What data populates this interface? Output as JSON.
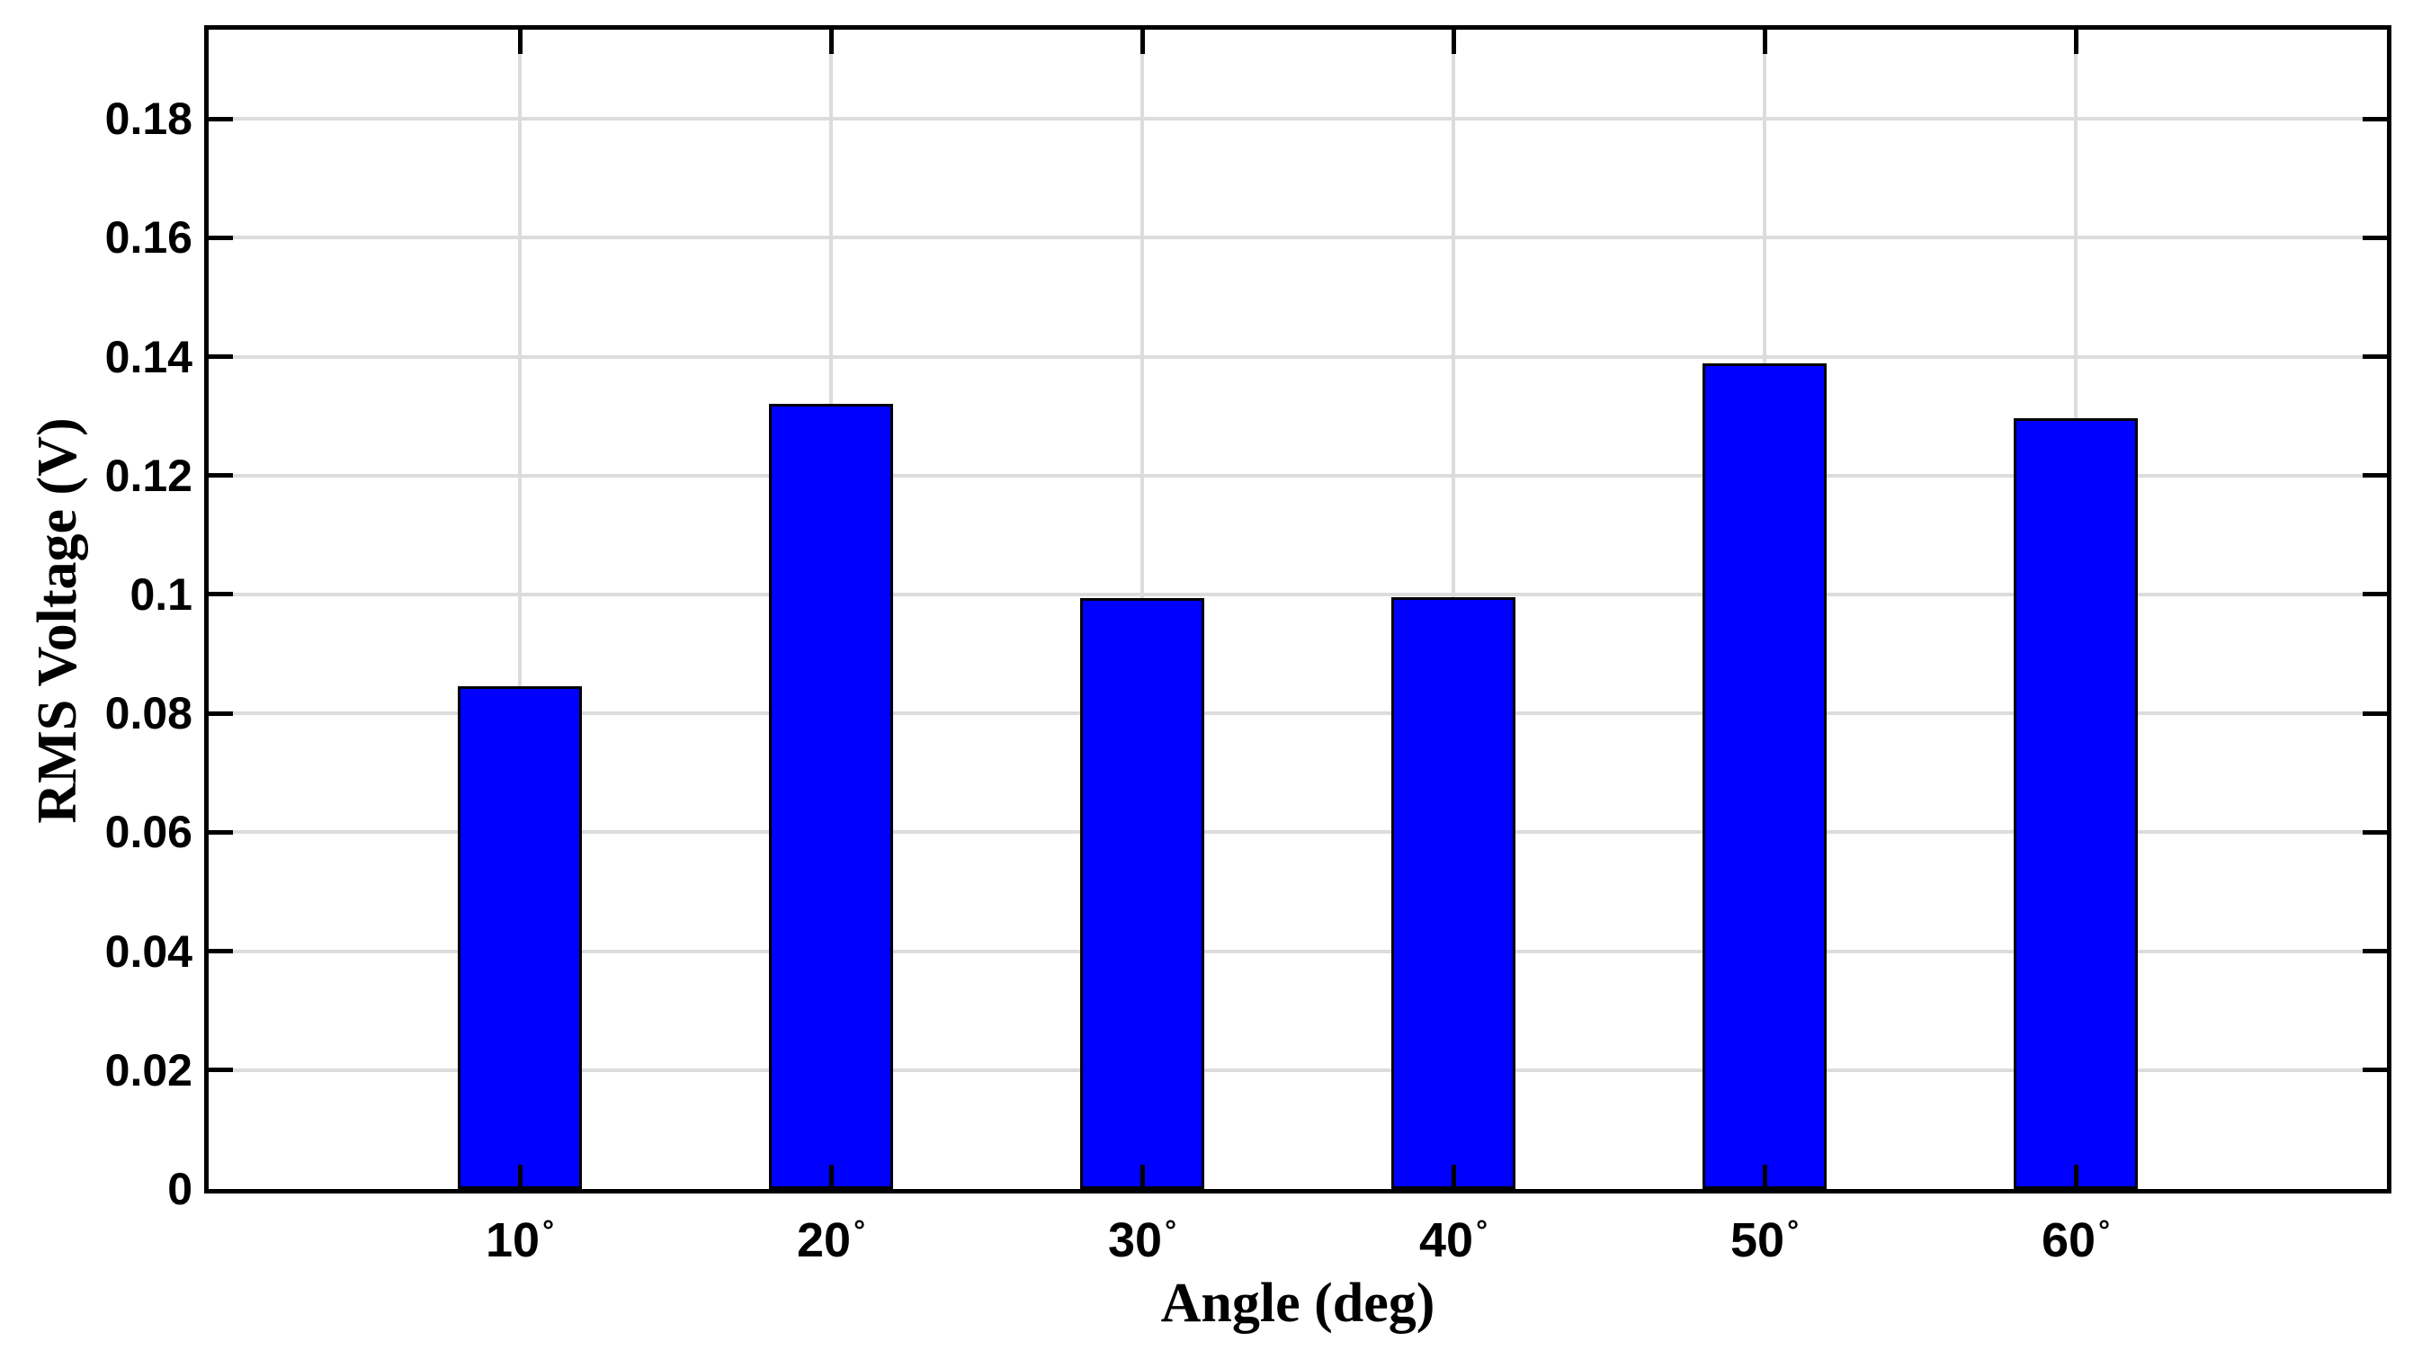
{
  "chart_data": {
    "type": "bar",
    "title": "",
    "xlabel": "Angle (deg)",
    "ylabel": "RMS Voltage (V)",
    "categories": [
      "10",
      "20",
      "30",
      "40",
      "50",
      "60"
    ],
    "category_suffix": "°",
    "values": [
      0.0845,
      0.1321,
      0.0994,
      0.0995,
      0.1389,
      0.1297
    ],
    "series_name": "RMS Voltage",
    "xlim_slots": 7,
    "ylim": [
      0,
      0.195
    ],
    "yticks": [
      0,
      0.02,
      0.04,
      0.06,
      0.08,
      0.1,
      0.12,
      0.14,
      0.16,
      0.18
    ],
    "ytick_labels": [
      "0",
      "0.02",
      "0.04",
      "0.06",
      "0.08",
      "0.1",
      "0.12",
      "0.14",
      "0.16",
      "0.18"
    ],
    "grid": true,
    "grid_axes": "both",
    "legend": null,
    "bar_width_fraction": 0.4,
    "colors": {
      "bar_fill": "#0000ff",
      "bar_edge": "#000000",
      "grid_line": "#dcdcdc",
      "axis": "#000000",
      "text": "#000000",
      "background": "#ffffff"
    }
  }
}
